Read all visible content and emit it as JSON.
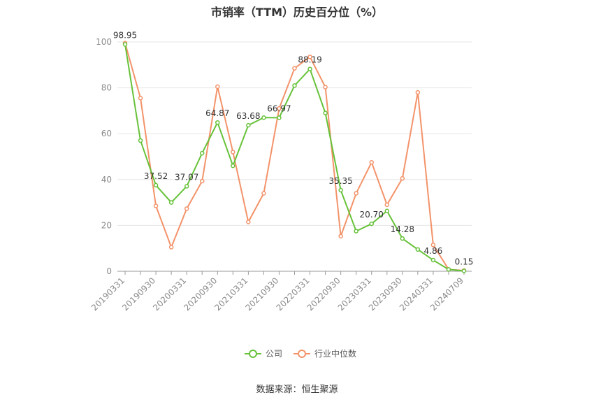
{
  "title": "市销率（TTM）历史百分位（%）",
  "source": "数据来源：恒生聚源",
  "colors": {
    "company": "#67c23a",
    "industry": "#f3936a",
    "grid": "#e6e6e6",
    "axis": "#999999"
  },
  "chart_data": {
    "type": "line",
    "title": "市销率（TTM）历史百分位（%）",
    "ylim": [
      0,
      100
    ],
    "yticks": [
      0,
      20,
      40,
      60,
      80,
      100
    ],
    "grid": true,
    "legend_position": "bottom-center",
    "x": [
      "20190331",
      "20190630",
      "20190930",
      "20191231",
      "20200331",
      "20200630",
      "20200930",
      "20201231",
      "20210331",
      "20210630",
      "20210930",
      "20211231",
      "20220331",
      "20220630",
      "20220930",
      "20221231",
      "20230331",
      "20230630",
      "20230930",
      "20231231",
      "20240331",
      "20240630",
      "20240709"
    ],
    "x_tick_labels": [
      "20190331",
      "20190930",
      "20200331",
      "20200930",
      "20210331",
      "20210930",
      "20220331",
      "20220930",
      "20230331",
      "20230930",
      "20240331",
      "20240709"
    ],
    "series": [
      {
        "name": "公司",
        "color": "#67c23a",
        "values": [
          98.95,
          57,
          37.52,
          30,
          37.07,
          51.5,
          64.87,
          46,
          63.68,
          67,
          66.97,
          81,
          88.19,
          69,
          35.35,
          17.5,
          20.7,
          26.3,
          14.28,
          9.5,
          4.86,
          0.8,
          0.15
        ]
      },
      {
        "name": "行业中位数",
        "color": "#f3936a",
        "values": [
          99.5,
          75.5,
          28.5,
          10.5,
          27.3,
          39.3,
          80.5,
          52,
          21.5,
          34,
          71,
          88.5,
          93.5,
          80.3,
          15.3,
          34,
          47.5,
          29,
          40.5,
          78,
          11.5,
          0.8,
          0.3
        ]
      }
    ],
    "data_labels": [
      {
        "index": 0,
        "text": "98.95"
      },
      {
        "index": 2,
        "text": "37.52"
      },
      {
        "index": 4,
        "text": "37.07"
      },
      {
        "index": 6,
        "text": "64.87"
      },
      {
        "index": 8,
        "text": "63.68"
      },
      {
        "index": 10,
        "text": "66.97"
      },
      {
        "index": 12,
        "text": "88.19"
      },
      {
        "index": 14,
        "text": "35.35"
      },
      {
        "index": 16,
        "text": "20.70"
      },
      {
        "index": 18,
        "text": "14.28"
      },
      {
        "index": 20,
        "text": "4.86"
      },
      {
        "index": 22,
        "text": "0.15"
      }
    ]
  }
}
